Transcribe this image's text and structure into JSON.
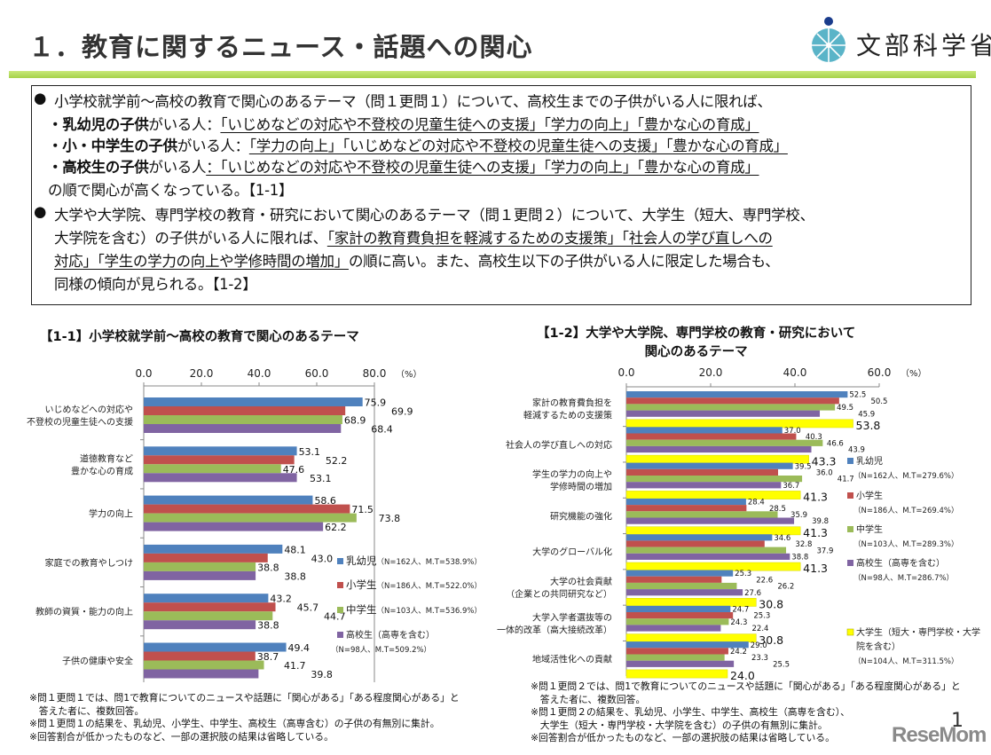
{
  "header": {
    "title": "１．教育に関するニュース・話題への関心",
    "logo_text": "文部科学省"
  },
  "summary": {
    "bullet": "●",
    "lines": [
      [
        {
          "t": "小学校就学前～高校の教育で関心のあるテーマ（問１更問１）について、高校生までの子供がいる人に限れば、"
        }
      ],
      [
        {
          "t": "・乳幼児の子供",
          "b": 1
        },
        {
          "t": "がいる人："
        },
        {
          "t": "「いじめなどの対応や不登校の児童生徒への支援」「学力の向上」「豊かな心の育成」",
          "u": 1
        }
      ],
      [
        {
          "t": "・小・中学生の子供",
          "b": 1
        },
        {
          "t": "がいる人："
        },
        {
          "t": "「学力の向上」「いじめなどの対応や不登校の児童生徒への支援」「豊かな心の育成」",
          "u": 1
        }
      ],
      [
        {
          "t": "・高校生の子供",
          "b": 1
        },
        {
          "t": "がいる人"
        },
        {
          "t": "：「いじめなどの対応や不登校の児童生徒への支援」「学力の向上」「豊かな心の育成」",
          "u": 1
        }
      ],
      [
        {
          "t": "の順で関心が高くなっている。【1-1】"
        }
      ],
      [
        {
          "t": "大学や大学院、専門学校の教育・研究において関心のあるテーマ（問１更問２）について、大学生（短大、専門学校、"
        }
      ],
      [
        {
          "t": "大学院を含む）の子供がいる人に限れば、"
        },
        {
          "t": "「家計の教育費負担を軽減するための支援策」「社会人の学び直しへの",
          "u": 1
        }
      ],
      [
        {
          "t": "対応」「学生の学力の向上や学修時間の増加」",
          "u": 1
        },
        {
          "t": "の順に高い。また、高校生以下の子供がいる人に限定した場合も、"
        }
      ],
      [
        {
          "t": "同様の傾向が見られる。【1-2】"
        }
      ]
    ]
  },
  "chart_data": [
    {
      "type": "bar",
      "orientation": "horizontal",
      "title": "【1-1】小学校就学前～高校の教育で関心のあるテーマ",
      "unit": "（%）",
      "xlim": [
        0,
        80
      ],
      "ticks": [
        "0.0",
        "20.0",
        "40.0",
        "60.0",
        "80.0"
      ],
      "grid": false,
      "legend": "right",
      "categories": [
        "いじめなどへの対応や\n不登校の児童生徒への支援",
        "道徳教育など\n豊かな心の育成",
        "学力の向上",
        "家庭での教育やしつけ",
        "教師の資質・能力の向上",
        "子供の健康や安全"
      ],
      "series": [
        {
          "name": "乳幼児",
          "detail": "（N=162人、M.T=538.9%）",
          "color": "#4f81bd",
          "values": [
            75.9,
            53.1,
            58.6,
            48.1,
            43.2,
            49.4
          ]
        },
        {
          "name": "小学生",
          "detail": "（N=186人、M.T=522.0%）",
          "color": "#c0504d",
          "values": [
            69.9,
            52.2,
            71.5,
            43.0,
            45.7,
            38.7
          ]
        },
        {
          "name": "中学生",
          "detail": "（N=103人、M.T=536.9%）",
          "color": "#9bbb59",
          "values": [
            68.9,
            47.6,
            73.8,
            38.8,
            44.7,
            41.7
          ]
        },
        {
          "name": "高校生（高専を含む）",
          "detail": "（N=98人、M.T=509.2%）",
          "color": "#8064a2",
          "values": [
            68.4,
            53.1,
            62.2,
            38.8,
            38.8,
            39.8
          ]
        }
      ],
      "notes": [
        "※問１更問１では、問1で教育についてのニュースや話題に「関心がある」「ある程度関心がある」と",
        "　答えた者に、複数回答。",
        "※問１更問１の結果を、乳幼児、小学生、中学生、高校生（高専含む）の子供の有無別に集計。",
        "※回答割合が低かったものなど、一部の選択肢の結果は省略している。"
      ]
    },
    {
      "type": "bar",
      "orientation": "horizontal",
      "title": "【1-2】大学や大学院、専門学校の教育・研究において\n関心のあるテーマ",
      "unit": "（%）",
      "xlim": [
        0,
        60
      ],
      "ticks": [
        "0.0",
        "20.0",
        "40.0",
        "60.0"
      ],
      "grid": false,
      "legend": "right",
      "categories": [
        "家計の教育費負担を\n軽減するための支援策",
        "社会人の学び直しへの対応",
        "学生の学力の向上や\n学修時間の増加",
        "研究機能の強化",
        "大学のグローバル化",
        "大学の社会貢献\n（企業との共同研究など）",
        "大学入学者選抜等の\n一体的改革（高大接続改革）",
        "地域活性化への貢献"
      ],
      "series": [
        {
          "name": "乳幼児",
          "detail": "（N=162人、M.T=279.6%）",
          "color": "#4f81bd",
          "values": [
            52.5,
            37.0,
            39.5,
            28.4,
            34.6,
            25.3,
            24.7,
            29.0
          ]
        },
        {
          "name": "小学生",
          "detail": "（N=186人、M.T=269.4%）",
          "color": "#c0504d",
          "values": [
            50.5,
            40.3,
            36.0,
            28.5,
            32.8,
            22.6,
            25.3,
            24.2
          ]
        },
        {
          "name": "中学生",
          "detail": "（N=103人、M.T=289.3%）",
          "color": "#9bbb59",
          "values": [
            49.5,
            46.6,
            41.7,
            35.9,
            37.9,
            26.2,
            24.3,
            23.3
          ]
        },
        {
          "name": "高校生（高専を含む）",
          "detail": "（N=98人、M.T=286.7%）",
          "color": "#8064a2",
          "values": [
            45.9,
            43.9,
            36.7,
            39.8,
            38.8,
            27.6,
            22.4,
            25.5
          ]
        },
        {
          "name": "大学生（短大・専門学校・大学\n院を含む）",
          "detail": "（N=104人、M.T=311.5%）",
          "color": "#ffff00",
          "values": [
            53.8,
            43.3,
            41.3,
            41.3,
            41.3,
            30.8,
            30.8,
            24.0
          ]
        }
      ],
      "notes": [
        "※問１更問２では、問1で教育についてのニュースや話題に「関心がある」「ある程度関心がある」と",
        "　答えた者に、複数回答。",
        "※問１更問２の結果を、乳幼児、小学生、中学生、高校生（高専を含む）、",
        "　大学生（短大・専門学校・大学院を含む）の子供の有無別に集計。",
        "※回答割合が低かったものなど、一部の選択肢の結果は省略している。"
      ]
    }
  ],
  "footer": {
    "page_number": "1",
    "watermark": "ReseMom"
  }
}
